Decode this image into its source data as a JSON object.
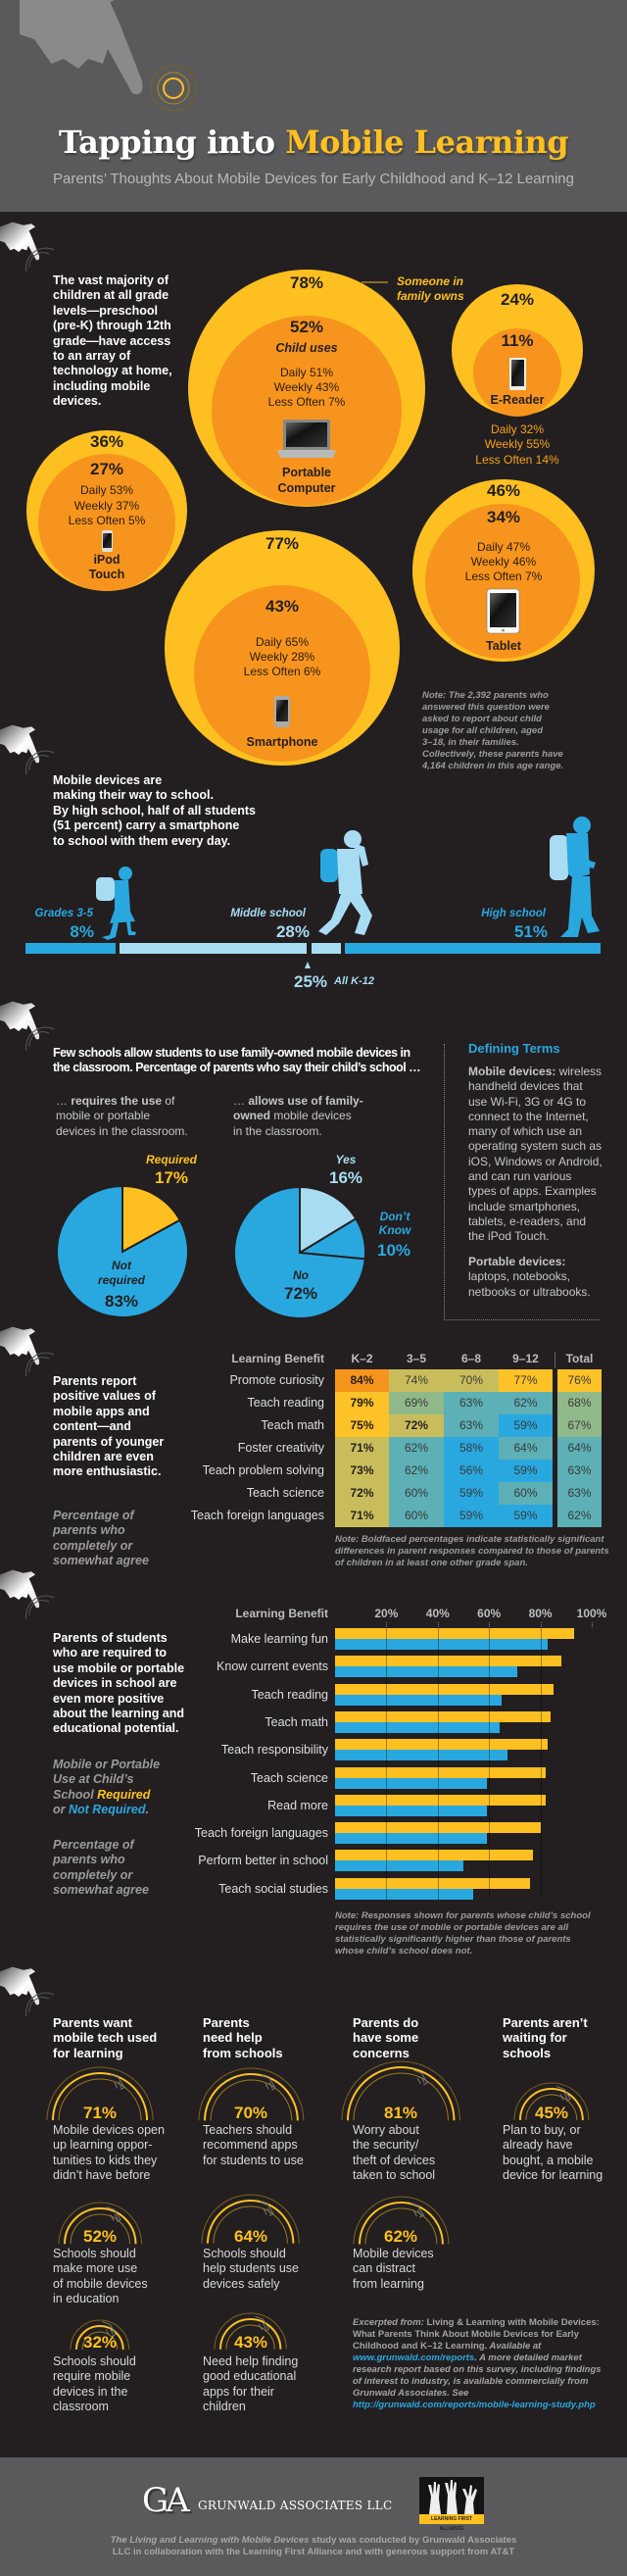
{
  "header": {
    "title_part1": "Tapping into",
    "title_part2": "Mobile Learning",
    "subtitle": "Parents’ Thoughts About Mobile Devices for Early Childhood and K–12 Learning"
  },
  "colors": {
    "yellow": "#fdc020",
    "orange": "#f7941d",
    "blue": "#29a8e0",
    "light_blue": "#a8dcf3",
    "dark_bg": "#231f20",
    "gray_bg": "#5a5a5c"
  },
  "devices": {
    "intro": "The vast majority of\nchildren at all grade\nlevels—preschool\n(pre-K) through 12th\ngrade—have access\nto an array of\ntechnology at home,\nincluding mobile\ndevices.",
    "family_owns_label": "Someone in\nfamily owns",
    "child_uses_label": "Child uses",
    "items": [
      {
        "name": "Portable\nComputer",
        "owns": "78%",
        "uses": "52%",
        "daily": "Daily 51%",
        "weekly": "Weekly 43%",
        "less": "Less Often 7%",
        "icon": "laptop-icon"
      },
      {
        "name": "E-Reader",
        "owns": "24%",
        "uses": "11%",
        "daily": "Daily 32%",
        "weekly": "Weekly 55%",
        "less": "Less Often 14%",
        "icon": "e-reader-icon"
      },
      {
        "name": "iPod\nTouch",
        "owns": "36%",
        "uses": "27%",
        "daily": "Daily 53%",
        "weekly": "Weekly 37%",
        "less": "Less Often 5%",
        "icon": "ipod-icon"
      },
      {
        "name": "Smartphone",
        "owns": "77%",
        "uses": "43%",
        "daily": "Daily 65%",
        "weekly": "Weekly 28%",
        "less": "Less Often 6%",
        "icon": "smartphone-icon"
      },
      {
        "name": "Tablet",
        "owns": "46%",
        "uses": "34%",
        "daily": "Daily 47%",
        "weekly": "Weekly 46%",
        "less": "Less Often 7%",
        "icon": "tablet-icon"
      }
    ],
    "note": "Note: The 2,392 parents who\nanswered this question were\nasked to report about child\nusage for all children, aged\n3–18, in their families.\nCollectively, these parents have\n4,164 children in this age range."
  },
  "school": {
    "intro": "Mobile devices are\nmaking their way to school.\nBy high school, half of all students\n(51 percent) carry a smartphone\nto school with them every day.",
    "grades": [
      {
        "label": "Grades 3-5",
        "value": "8%"
      },
      {
        "label": "Middle school",
        "value": "28%"
      },
      {
        "label": "High school",
        "value": "51%"
      }
    ],
    "all": {
      "value": "25%",
      "label": "All K-12"
    }
  },
  "classroom": {
    "intro": "Few schools allow students to use family-owned mobile devices in\nthe classroom. Percentage of parents who say their child’s school …",
    "cap1": {
      "pre": "… ",
      "bold": "requires the use",
      "post": " of\nmobile or portable\ndevices in the classroom."
    },
    "cap2": {
      "pre": "… ",
      "bold": "allows use of family-\nowned",
      "post": " mobile devices\nin the classroom."
    },
    "terms": {
      "title": "Defining Terms",
      "t1": "Mobile devices:",
      "d1": " wireless\nhandheld devices that\nuse Wi-Fi, 3G or 4G to\nconnect to the Internet,\nmany of which use an\noperating system such as\niOS, Windows or Android,\nand can run various\ntypes of apps. Examples\ninclude smartphones,\ntablets, e-readers, and\nthe iPod Touch.",
      "t2": "Portable devices:",
      "d2": "\nlaptops, notebooks,\nnetbooks or ultrabooks."
    }
  },
  "benefits": {
    "intro": "Parents report\npositive values of\nmobile apps and\ncontent—and\nparents of younger\nchildren are even\nmore enthusiastic.",
    "sub": "Percentage of\nparents who\ncompletely or\nsomewhat agree",
    "note": "Note: Boldfaced percentages indicate statistically significant\ndifferences in parent responses compared to those of parents\nof children in at least one other grade span."
  },
  "required": {
    "intro": "Parents of students\nwho are required to\nuse mobile or portable\ndevices in school are\neven more positive\nabout the learning and\neducational potential.",
    "legend_pre": "Mobile or Portable\nUse at Child’s\nSchool ",
    "legend_req": "Required",
    "legend_mid": "\nor ",
    "legend_not": "Not Required",
    "legend_post": ".",
    "sub": "Percentage of\nparents who\ncompletely or\nsomewhat agree",
    "note": "Note: Responses shown for parents whose child’s school\nrequires the use of mobile or portable devices are all\nstatistically significantly higher than those of parents\nwhose child’s school does not."
  },
  "attitudes": {
    "columns": [
      {
        "title": "Parents want\nmobile tech used\nfor learning",
        "items": [
          {
            "value": 71,
            "text": "Mobile devices open\nup learning oppor-\ntunities to kids they\ndidn’t have before"
          },
          {
            "value": 52,
            "text": "Schools should\nmake more use\nof mobile devices\nin education"
          },
          {
            "value": 32,
            "text": "Schools should\nrequire mobile\ndevices in the\nclassroom"
          }
        ]
      },
      {
        "title": "Parents\nneed help\nfrom schools",
        "items": [
          {
            "value": 70,
            "text": "Teachers should\nrecommend apps\nfor students to use"
          },
          {
            "value": 64,
            "text": "Schools should\nhelp students use\ndevices safely"
          },
          {
            "value": 43,
            "text": "Need help finding\ngood educational\napps for their\nchildren"
          }
        ]
      },
      {
        "title": "Parents do\nhave some\nconcerns",
        "items": [
          {
            "value": 81,
            "text": "Worry about\nthe security/\ntheft of devices\ntaken to school"
          },
          {
            "value": 62,
            "text": "Mobile devices\ncan distract\nfrom learning"
          }
        ]
      },
      {
        "title": "Parents aren’t\nwaiting for\nschools",
        "items": [
          {
            "value": 45,
            "text": "Plan to buy, or\nalready have\nbought, a mobile\ndevice for learning"
          }
        ]
      }
    ],
    "excerpt": {
      "em1": "Excerpted from:",
      "b1": " Living & Learning with Mobile Devices:\nWhat Parents Think About Mobile Devices for Early\nChildhood and K–12 Learning.",
      "em2": " Available at\n",
      "link1": "www.grunwald.com/reports",
      "em3": ". A more detailed market\nresearch report based on this survey, including findings\nof interest to industry, is available commercially from\nGrunwald Associates. See\n",
      "link2": "http://grunwald.com/reports/mobile-learning-study.php"
    }
  },
  "footer": {
    "logo_mark": "GA",
    "logo_text": "GRUNWALD ASSOCIATES LLC",
    "partner_logo_text": "LEARNING FIRST ALLIANCE",
    "credit_em": "The Living and Learning with Mobile Devices",
    "credit_rest": " study was conducted by Grunwald Associates\nLLC in collaboration with the Learning First Alliance and with generous support from AT&T"
  },
  "chart_data": [
    {
      "type": "pie",
      "categories": [
        "Required",
        "Not required"
      ],
      "values": [
        17,
        83
      ],
      "colors": [
        "#fdc020",
        "#29a8e0"
      ]
    },
    {
      "type": "pie",
      "categories": [
        "Yes",
        "Don’t Know",
        "No"
      ],
      "values": [
        16,
        10,
        72
      ],
      "colors": [
        "#a8dcf3",
        "#29a8e0",
        "#29a8e0"
      ]
    },
    {
      "type": "heatmap",
      "row_header": "Learning Benefit",
      "columns": [
        "K–2",
        "3–5",
        "6–8",
        "9–12",
        "Total"
      ],
      "rows": [
        "Promote curiosity",
        "Teach reading",
        "Teach math",
        "Foster creativity",
        "Teach problem solving",
        "Teach science",
        "Teach foreign languages"
      ],
      "values": [
        [
          84,
          74,
          70,
          77,
          76
        ],
        [
          79,
          69,
          63,
          62,
          68
        ],
        [
          75,
          72,
          63,
          59,
          67
        ],
        [
          71,
          62,
          58,
          64,
          64
        ],
        [
          73,
          62,
          56,
          59,
          63
        ],
        [
          72,
          60,
          59,
          60,
          63
        ],
        [
          71,
          60,
          59,
          59,
          62
        ]
      ],
      "bold": [
        [
          true,
          false,
          false,
          false,
          false
        ],
        [
          true,
          false,
          false,
          false,
          false
        ],
        [
          true,
          true,
          false,
          false,
          false
        ],
        [
          true,
          false,
          false,
          false,
          false
        ],
        [
          true,
          false,
          false,
          false,
          false
        ],
        [
          true,
          false,
          false,
          false,
          false
        ],
        [
          true,
          false,
          false,
          false,
          false
        ]
      ],
      "color_scale": [
        {
          "min": 80,
          "color": "#f7941d"
        },
        {
          "min": 75,
          "color": "#fdc226"
        },
        {
          "min": 70,
          "color": "#c9bd5b"
        },
        {
          "min": 65,
          "color": "#90b98a"
        },
        {
          "min": 60,
          "color": "#5cb0b6"
        },
        {
          "min": 0,
          "color": "#29a8e0"
        }
      ]
    },
    {
      "type": "bar",
      "orientation": "horizontal",
      "row_header": "Learning Benefit",
      "categories": [
        "Make learning fun",
        "Know current events",
        "Teach reading",
        "Teach math",
        "Teach responsibility",
        "Teach science",
        "Read more",
        "Teach foreign languages",
        "Perform better in school",
        "Teach social studies"
      ],
      "series": [
        {
          "name": "Required",
          "color": "#fdc020",
          "values": [
            93,
            88,
            85,
            84,
            83,
            82,
            82,
            80,
            77,
            76
          ]
        },
        {
          "name": "Not Required",
          "color": "#29a8e0",
          "values": [
            83,
            71,
            65,
            64,
            67,
            59,
            59,
            59,
            50,
            54
          ]
        }
      ],
      "xticks": [
        "20%",
        "40%",
        "60%",
        "80%",
        "100%"
      ],
      "xlim": [
        0,
        100
      ],
      "grid": true
    }
  ]
}
